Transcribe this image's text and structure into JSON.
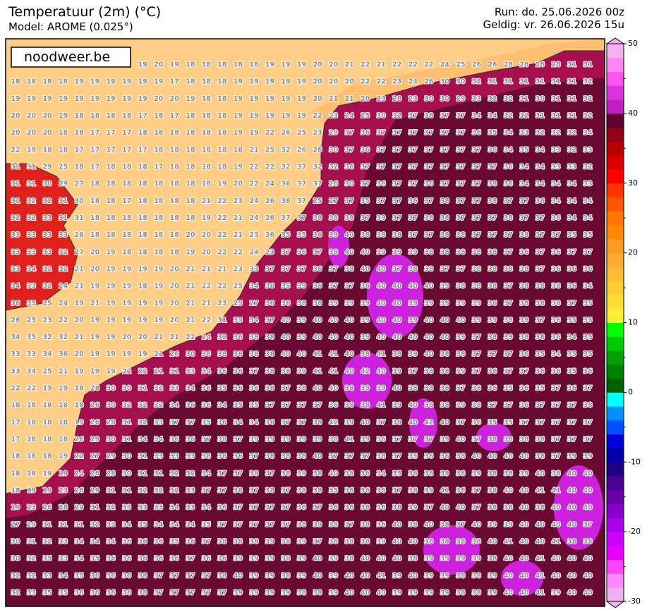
{
  "header": {
    "title": "Temperatuur (2m) (°C)",
    "model": "Model: AROME (0.025°)",
    "run": "Run: do. 25.06.2026 00z",
    "valid": "Geldig: vr. 26.06.2026 15u"
  },
  "logo": "noodweer.be",
  "colorbar": {
    "lim": [
      -30,
      50
    ],
    "ticks": [
      -30,
      -20,
      -10,
      0,
      10,
      20,
      30,
      40,
      50
    ],
    "minor_ticks": [
      -25,
      -15,
      -5,
      5,
      15,
      25,
      35,
      45
    ],
    "step": 2,
    "colors": [
      "#f0b0f0",
      "#ff88ff",
      "#ff44ff",
      "#e800ff",
      "#cc00ff",
      "#aa00ee",
      "#8800cc",
      "#6a00aa",
      "#4a0090",
      "#200080",
      "#0000aa",
      "#0000dd",
      "#0050ff",
      "#0090ff",
      "#00ffff",
      "#006000",
      "#008000",
      "#00a000",
      "#00cc00",
      "#00ff00",
      "#ffee33",
      "#ffdd33",
      "#ffcc33",
      "#ffbb33",
      "#ffaa33",
      "#ff9920",
      "#ff8800",
      "#ff7700",
      "#ff5500",
      "#ff3300",
      "#ff0000",
      "#dd0000",
      "#b80000",
      "#900018",
      "#600030",
      "#c020c0",
      "#dd33dd",
      "#ff55ee",
      "#ff88f0",
      "#f5b0f0"
    ]
  },
  "grid": {
    "rows": [
      [
        null,
        null,
        null,
        null,
        null,
        null,
        null,
        null,
        19,
        20,
        19,
        18,
        18,
        18,
        18,
        18,
        19,
        19,
        19,
        20,
        20,
        21,
        22,
        21,
        22,
        22,
        22,
        24,
        25,
        26,
        26,
        28,
        26,
        26,
        28,
        31,
        31
      ],
      [
        18,
        18,
        18,
        18,
        19,
        19,
        19,
        19,
        19,
        19,
        17,
        18,
        18,
        18,
        19,
        19,
        19,
        19,
        19,
        20,
        20,
        20,
        22,
        22,
        23,
        24,
        26,
        30,
        30,
        32,
        31,
        31,
        31,
        31,
        31,
        31,
        32
      ],
      [
        19,
        19,
        19,
        19,
        19,
        19,
        19,
        19,
        19,
        20,
        20,
        19,
        18,
        18,
        19,
        19,
        19,
        19,
        19,
        20,
        21,
        21,
        20,
        23,
        28,
        23,
        30,
        30,
        29,
        33,
        32,
        32,
        31,
        30,
        31,
        31,
        32
      ],
      [
        20,
        20,
        20,
        19,
        18,
        18,
        18,
        18,
        17,
        18,
        17,
        18,
        18,
        18,
        19,
        19,
        19,
        19,
        19,
        22,
        23,
        24,
        25,
        30,
        32,
        37,
        38,
        37,
        37,
        34,
        34,
        32,
        32,
        31,
        31,
        31,
        32
      ],
      [
        20,
        20,
        20,
        18,
        18,
        17,
        17,
        17,
        18,
        18,
        18,
        18,
        18,
        18,
        19,
        19,
        22,
        26,
        25,
        23,
        29,
        37,
        36,
        37,
        37,
        37,
        37,
        37,
        37,
        36,
        35,
        34,
        33,
        32,
        32,
        32,
        34
      ],
      [
        22,
        19,
        18,
        18,
        17,
        17,
        17,
        17,
        17,
        18,
        18,
        18,
        18,
        18,
        18,
        21,
        25,
        32,
        26,
        26,
        30,
        37,
        36,
        37,
        37,
        37,
        37,
        37,
        37,
        37,
        36,
        34,
        35,
        34,
        33,
        32,
        33
      ],
      [
        31,
        31,
        29,
        25,
        18,
        17,
        18,
        18,
        18,
        17,
        18,
        18,
        18,
        18,
        19,
        22,
        22,
        32,
        37,
        32,
        32,
        36,
        37,
        37,
        37,
        37,
        37,
        37,
        37,
        37,
        37,
        36,
        34,
        34,
        33,
        33,
        32
      ],
      [
        31,
        31,
        30,
        29,
        27,
        18,
        18,
        18,
        18,
        18,
        18,
        18,
        18,
        19,
        20,
        22,
        24,
        36,
        37,
        37,
        26,
        30,
        37,
        36,
        37,
        37,
        36,
        37,
        37,
        37,
        38,
        36,
        34,
        34,
        34,
        34,
        33
      ],
      [
        31,
        32,
        32,
        31,
        30,
        18,
        18,
        17,
        18,
        18,
        18,
        18,
        21,
        22,
        23,
        24,
        26,
        36,
        37,
        25,
        27,
        37,
        35,
        37,
        37,
        36,
        37,
        38,
        37,
        37,
        38,
        37,
        37,
        36,
        34,
        34,
        34
      ],
      [
        32,
        32,
        33,
        31,
        31,
        18,
        18,
        18,
        18,
        18,
        18,
        18,
        19,
        22,
        21,
        24,
        26,
        37,
        37,
        38,
        38,
        38,
        37,
        39,
        37,
        37,
        38,
        38,
        37,
        37,
        37,
        38,
        37,
        37,
        36,
        34,
        34
      ],
      [
        33,
        33,
        33,
        33,
        26,
        18,
        18,
        18,
        18,
        18,
        18,
        20,
        20,
        22,
        21,
        23,
        36,
        35,
        35,
        36,
        39,
        40,
        38,
        38,
        38,
        37,
        37,
        38,
        38,
        37,
        37,
        37,
        38,
        37,
        37,
        35,
        35
      ],
      [
        33,
        33,
        33,
        32,
        27,
        20,
        19,
        18,
        18,
        18,
        18,
        19,
        20,
        22,
        22,
        24,
        23,
        37,
        36,
        37,
        38,
        40,
        40,
        39,
        39,
        39,
        38,
        38,
        38,
        38,
        38,
        37,
        36,
        37,
        36,
        37,
        37
      ],
      [
        33,
        34,
        32,
        32,
        21,
        20,
        19,
        19,
        19,
        19,
        20,
        21,
        21,
        21,
        23,
        33,
        37,
        37,
        37,
        36,
        37,
        38,
        40,
        40,
        37,
        38,
        38,
        37,
        37,
        38,
        38,
        38,
        38,
        37,
        36,
        36,
        36
      ],
      [
        34,
        33,
        32,
        24,
        21,
        19,
        19,
        19,
        18,
        19,
        20,
        21,
        22,
        22,
        25,
        34,
        36,
        35,
        39,
        36,
        37,
        37,
        38,
        40,
        40,
        40,
        40,
        39,
        38,
        38,
        38,
        37,
        38,
        38,
        38,
        36,
        34
      ],
      [
        36,
        35,
        25,
        24,
        19,
        21,
        19,
        19,
        19,
        19,
        20,
        21,
        21,
        23,
        25,
        27,
        36,
        36,
        38,
        38,
        39,
        39,
        39,
        40,
        40,
        39,
        39,
        39,
        39,
        39,
        36,
        37,
        38,
        38,
        38,
        37,
        35
      ],
      [
        26,
        25,
        23,
        22,
        20,
        19,
        19,
        19,
        19,
        19,
        20,
        21,
        22,
        31,
        35,
        34,
        37,
        40,
        39,
        40,
        40,
        40,
        39,
        40,
        40,
        39,
        40,
        40,
        40,
        39,
        39,
        38,
        39,
        37,
        36,
        35,
        35
      ],
      [
        34,
        35,
        32,
        32,
        21,
        19,
        19,
        20,
        20,
        21,
        21,
        22,
        24,
        32,
        36,
        38,
        38,
        40,
        39,
        40,
        40,
        40,
        39,
        40,
        40,
        40,
        40,
        40,
        39,
        37,
        38,
        39,
        38,
        38,
        36,
        34,
        35
      ],
      [
        33,
        33,
        34,
        36,
        20,
        19,
        19,
        19,
        19,
        21,
        26,
        30,
        36,
        38,
        38,
        38,
        38,
        40,
        40,
        41,
        41,
        40,
        38,
        41,
        38,
        39,
        40,
        38,
        38,
        37,
        37,
        37,
        36,
        35,
        34,
        35,
        35
      ],
      [
        33,
        34,
        25,
        21,
        19,
        19,
        19,
        22,
        22,
        21,
        31,
        33,
        34,
        36,
        36,
        37,
        38,
        38,
        39,
        41,
        41,
        40,
        42,
        40,
        39,
        37,
        38,
        38,
        39,
        37,
        36,
        37,
        37,
        36,
        36,
        35,
        36
      ],
      [
        22,
        22,
        19,
        19,
        18,
        28,
        30,
        30,
        31,
        32,
        33,
        34,
        36,
        35,
        36,
        36,
        36,
        37,
        38,
        40,
        40,
        38,
        39,
        39,
        40,
        38,
        38,
        38,
        37,
        38,
        36,
        35,
        36,
        35,
        37,
        36,
        37
      ],
      [
        18,
        18,
        18,
        18,
        18,
        26,
        30,
        32,
        32,
        32,
        34,
        36,
        36,
        34,
        35,
        35,
        37,
        37,
        37,
        37,
        36,
        38,
        38,
        41,
        39,
        40,
        38,
        38,
        39,
        38,
        37,
        37,
        36,
        37,
        37,
        37,
        38
      ],
      [
        17,
        18,
        18,
        18,
        19,
        26,
        28,
        31,
        32,
        33,
        37,
        37,
        35,
        36,
        34,
        34,
        36,
        37,
        37,
        38,
        42,
        39,
        40,
        37,
        38,
        40,
        42,
        40,
        37,
        36,
        35,
        35,
        37,
        37,
        37,
        37,
        37
      ],
      [
        17,
        18,
        18,
        18,
        26,
        29,
        30,
        31,
        34,
        34,
        36,
        36,
        37,
        38,
        37,
        39,
        39,
        39,
        39,
        39,
        38,
        41,
        39,
        36,
        37,
        37,
        37,
        39,
        40,
        37,
        38,
        38,
        38,
        38,
        37,
        37,
        37
      ],
      [
        18,
        18,
        18,
        19,
        22,
        27,
        29,
        30,
        31,
        33,
        33,
        33,
        38,
        36,
        36,
        37,
        38,
        38,
        38,
        40,
        37,
        37,
        37,
        38,
        37,
        35,
        36,
        36,
        38,
        40,
        40,
        40,
        40,
        38,
        37,
        39,
        39
      ],
      [
        18,
        18,
        19,
        19,
        24,
        26,
        28,
        30,
        31,
        31,
        32,
        32,
        34,
        37,
        37,
        38,
        37,
        38,
        39,
        38,
        40,
        38,
        36,
        34,
        35,
        36,
        38,
        39,
        38,
        39,
        38,
        38,
        39,
        40,
        38,
        40,
        40
      ],
      [
        18,
        19,
        19,
        23,
        26,
        29,
        31,
        31,
        32,
        32,
        32,
        33,
        37,
        37,
        38,
        37,
        38,
        37,
        38,
        38,
        35,
        36,
        36,
        36,
        37,
        38,
        39,
        41,
        36,
        37,
        38,
        40,
        40,
        41,
        41,
        40,
        40
      ],
      [
        19,
        23,
        26,
        28,
        29,
        31,
        32,
        33,
        33,
        33,
        34,
        33,
        34,
        36,
        37,
        37,
        37,
        37,
        36,
        37,
        36,
        36,
        38,
        36,
        38,
        39,
        37,
        40,
        40,
        37,
        38,
        38,
        40,
        38,
        40,
        40,
        40
      ],
      [
        27,
        29,
        31,
        31,
        31,
        32,
        33,
        34,
        35,
        34,
        34,
        34,
        35,
        37,
        37,
        37,
        37,
        37,
        38,
        39,
        38,
        37,
        38,
        36,
        40,
        38,
        40,
        38,
        37,
        40,
        39,
        39,
        40,
        40,
        40,
        40,
        37
      ],
      [
        30,
        31,
        32,
        33,
        34,
        34,
        34,
        36,
        36,
        36,
        35,
        36,
        37,
        38,
        38,
        38,
        39,
        38,
        39,
        37,
        38,
        38,
        38,
        39,
        40,
        40,
        38,
        38,
        38,
        38,
        40,
        41,
        40,
        40,
        41,
        38,
        38
      ],
      [
        30,
        32,
        35,
        33,
        34,
        35,
        36,
        36,
        36,
        36,
        36,
        37,
        36,
        36,
        39,
        39,
        39,
        38,
        39,
        40,
        39,
        38,
        40,
        40,
        40,
        38,
        39,
        39,
        39,
        39,
        38,
        40,
        40,
        41,
        40,
        40,
        40
      ],
      [
        32,
        32,
        33,
        34,
        35,
        36,
        36,
        36,
        38,
        37,
        37,
        37,
        37,
        38,
        40,
        39,
        39,
        38,
        39,
        40,
        39,
        40,
        40,
        41,
        39,
        40,
        39,
        39,
        38,
        38,
        39,
        40,
        40,
        41,
        40,
        40,
        40
      ],
      [
        32,
        33,
        35,
        35,
        36,
        36,
        36,
        38,
        38,
        37,
        37,
        37,
        37,
        37,
        39,
        39,
        39,
        39,
        38,
        38,
        39,
        40,
        40,
        40,
        39,
        39,
        39,
        39,
        38,
        38,
        39,
        40,
        40,
        41,
        39,
        40,
        40
      ]
    ]
  }
}
